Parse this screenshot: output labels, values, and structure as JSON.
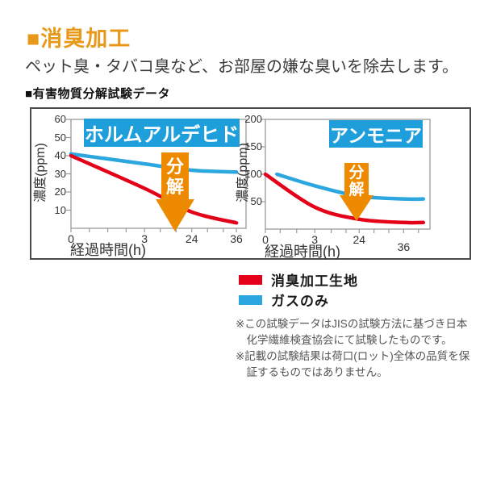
{
  "page": {
    "title": "■消臭加工",
    "subtitle": "ペット臭・タバコ臭など、お部屋の嫌な臭いを除去します。",
    "section_header": "■有害物質分解試験データ",
    "colors": {
      "accent_orange": "#E8991A",
      "arrow_orange": "#EE8A00",
      "title_box_cyan": "#1E9FDB",
      "line_red": "#E50019",
      "line_blue": "#2CA6DF",
      "panel_border": "#4a4a4a"
    }
  },
  "chart_data": [
    {
      "type": "line",
      "title": "ホルムアルデヒド",
      "xlabel": "経過時間(h)",
      "ylabel": "濃度(ppm)",
      "x_tick_labels": [
        "0",
        "3",
        "24",
        "36"
      ],
      "y_tick_labels": [
        "60",
        "50",
        "40",
        "30",
        "20",
        "10"
      ],
      "x_hours": [
        0,
        3,
        24,
        36
      ],
      "ylim": [
        0,
        60
      ],
      "grid": false,
      "annotation": "分解",
      "series": [
        {
          "name": "ガスのみ",
          "color": "#2CA6DF",
          "values": [
            41,
            35.5,
            32,
            31
          ]
        },
        {
          "name": "消臭加工生地",
          "color": "#E50019",
          "values": [
            40,
            22,
            9,
            3
          ]
        }
      ]
    },
    {
      "type": "line",
      "title": "アンモニア",
      "xlabel": "経過時間(h)",
      "ylabel": "濃度(ppm)",
      "x_tick_labels": [
        "0",
        "3",
        "24",
        "36"
      ],
      "y_tick_labels": [
        "200",
        "150",
        "100",
        "50"
      ],
      "x_hours": [
        0,
        3,
        24,
        36
      ],
      "ylim": [
        0,
        200
      ],
      "grid": false,
      "annotation": "分解",
      "series": [
        {
          "name": "ガスのみ",
          "color": "#2CA6DF",
          "values": [
            100,
            79,
            60,
            55
          ]
        },
        {
          "name": "消臭加工生地",
          "color": "#E50019",
          "values": [
            100,
            40,
            18,
            12
          ]
        }
      ]
    }
  ],
  "legend": {
    "items": [
      {
        "label": "消臭加工生地",
        "color": "#E50019"
      },
      {
        "label": "ガスのみ",
        "color": "#2CA6DF"
      }
    ]
  },
  "notes": [
    "※この試験データはJISの試験方法に基づき日本化学繊維検査協会にて試験したものです。",
    "※記載の試験結果は荷口(ロット)全体の品質を保証するものではありません。"
  ]
}
